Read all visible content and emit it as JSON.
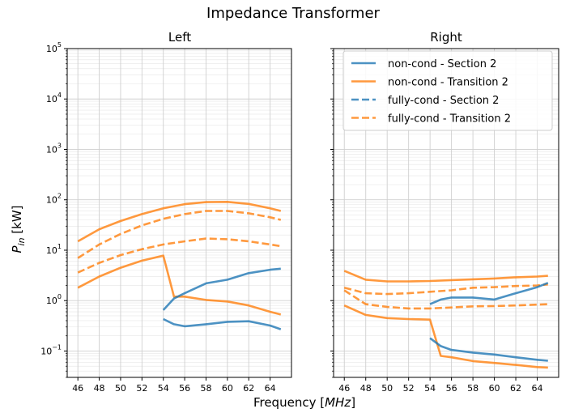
{
  "figure": {
    "suptitle": "Impedance Transformer",
    "xlabel": "Frequency [MHz]",
    "ylabel": "P_in [kW]"
  },
  "legend": {
    "entries": [
      {
        "label": "non-cond - Section 2",
        "color": "#1f77b4",
        "dash": "solid"
      },
      {
        "label": "non-cond - Transition 2",
        "color": "#ff7f0e",
        "dash": "solid"
      },
      {
        "label": "fully-cond - Section 2",
        "color": "#1f77b4",
        "dash": "dashed"
      },
      {
        "label": "fully-cond - Transition 2",
        "color": "#ff7f0e",
        "dash": "dashed"
      }
    ],
    "placement": "top-right of Right panel"
  },
  "chart_data": [
    {
      "type": "line",
      "title": "Left",
      "xlabel": "Frequency [MHz]",
      "ylabel": "P_in [kW]",
      "xlim": [
        45,
        66
      ],
      "ylim": [
        0.03,
        100000
      ],
      "yscale": "log",
      "x_ticks": [
        "46",
        "48",
        "50",
        "52",
        "54",
        "56",
        "58",
        "60",
        "62",
        "64"
      ],
      "y_ticks": [
        "10^-1",
        "10^0",
        "10^1",
        "10^2",
        "10^3",
        "10^4",
        "10^5"
      ],
      "grid": true,
      "series": [
        {
          "name": "non-cond - Transition 2",
          "color": "#ff7f0e",
          "dash": "solid",
          "x": [
            46,
            48,
            50,
            52,
            54,
            56,
            58,
            60,
            62,
            64,
            65
          ],
          "y": [
            15,
            26,
            38,
            52,
            68,
            82,
            90,
            91,
            83,
            68,
            60
          ]
        },
        {
          "name": "fully-cond - Transition 2",
          "color": "#ff7f0e",
          "dash": "dashed",
          "x": [
            46,
            48,
            50,
            52,
            54,
            56,
            58,
            60,
            62,
            64,
            65
          ],
          "y": [
            7,
            13,
            21,
            31,
            42,
            52,
            60,
            60,
            54,
            45,
            40
          ]
        },
        {
          "name": "fully-cond - Transition 2",
          "color": "#ff7f0e",
          "dash": "dashed",
          "x": [
            46,
            48,
            50,
            52,
            54,
            56,
            58,
            60,
            62,
            64,
            65
          ],
          "y": [
            3.6,
            5.6,
            8,
            10.5,
            13,
            15,
            17,
            16.5,
            15,
            13,
            12
          ]
        },
        {
          "name": "non-cond - Transition 2",
          "color": "#ff7f0e",
          "dash": "solid",
          "x": [
            46,
            48,
            50,
            52,
            54,
            55,
            56,
            58,
            60,
            62,
            64,
            65
          ],
          "y": [
            1.8,
            3,
            4.5,
            6.2,
            7.8,
            1.2,
            1.2,
            1.03,
            0.96,
            0.8,
            0.6,
            0.53
          ]
        },
        {
          "name": "non-cond - Section 2",
          "color": "#1f77b4",
          "dash": "solid",
          "x": [
            54,
            55,
            56,
            58,
            60,
            62,
            64,
            65
          ],
          "y": [
            0.65,
            1.1,
            1.4,
            2.2,
            2.6,
            3.5,
            4.1,
            4.3
          ]
        },
        {
          "name": "non-cond - Section 2",
          "color": "#1f77b4",
          "dash": "solid",
          "x": [
            54,
            55,
            56,
            58,
            60,
            62,
            64,
            65
          ],
          "y": [
            0.43,
            0.34,
            0.31,
            0.34,
            0.38,
            0.39,
            0.32,
            0.27
          ]
        }
      ]
    },
    {
      "type": "line",
      "title": "Right",
      "xlabel": "Frequency [MHz]",
      "ylabel": "",
      "xlim": [
        45,
        66
      ],
      "ylim": [
        0.03,
        100000
      ],
      "yscale": "log",
      "x_ticks": [
        "46",
        "48",
        "50",
        "52",
        "54",
        "56",
        "58",
        "60",
        "62",
        "64"
      ],
      "grid": true,
      "series": [
        {
          "name": "non-cond - Transition 2",
          "color": "#ff7f0e",
          "dash": "solid",
          "x": [
            46,
            48,
            50,
            52,
            54,
            56,
            58,
            60,
            62,
            64,
            65
          ],
          "y": [
            3.9,
            2.6,
            2.4,
            2.4,
            2.45,
            2.55,
            2.65,
            2.75,
            2.9,
            3.0,
            3.1
          ]
        },
        {
          "name": "fully-cond - Transition 2",
          "color": "#ff7f0e",
          "dash": "dashed",
          "x": [
            46,
            48,
            50,
            52,
            54,
            56,
            58,
            60,
            62,
            64,
            65
          ],
          "y": [
            1.8,
            1.4,
            1.35,
            1.4,
            1.5,
            1.6,
            1.8,
            1.85,
            1.95,
            2.0,
            2.1
          ]
        },
        {
          "name": "non-cond - Section 2",
          "color": "#1f77b4",
          "dash": "solid",
          "x": [
            54,
            55,
            56,
            58,
            60,
            62,
            64,
            65
          ],
          "y": [
            0.85,
            1.05,
            1.15,
            1.15,
            1.05,
            1.4,
            1.85,
            2.25
          ]
        },
        {
          "name": "fully-cond - Transition 2",
          "color": "#ff7f0e",
          "dash": "dashed",
          "x": [
            46,
            48,
            50,
            52,
            54,
            56,
            58,
            60,
            62,
            64,
            65
          ],
          "y": [
            1.6,
            0.85,
            0.75,
            0.7,
            0.7,
            0.73,
            0.77,
            0.78,
            0.8,
            0.83,
            0.85
          ]
        },
        {
          "name": "non-cond - Transition 2",
          "color": "#ff7f0e",
          "dash": "solid",
          "x": [
            46,
            48,
            50,
            52,
            54,
            55,
            56,
            58,
            60,
            62,
            64,
            65
          ],
          "y": [
            0.8,
            0.52,
            0.45,
            0.43,
            0.42,
            0.08,
            0.075,
            0.063,
            0.058,
            0.053,
            0.048,
            0.047
          ]
        },
        {
          "name": "non-cond - Section 2",
          "color": "#1f77b4",
          "dash": "solid",
          "x": [
            54,
            55,
            56,
            58,
            60,
            62,
            64,
            65
          ],
          "y": [
            0.18,
            0.125,
            0.105,
            0.093,
            0.085,
            0.075,
            0.067,
            0.064
          ]
        }
      ]
    }
  ]
}
